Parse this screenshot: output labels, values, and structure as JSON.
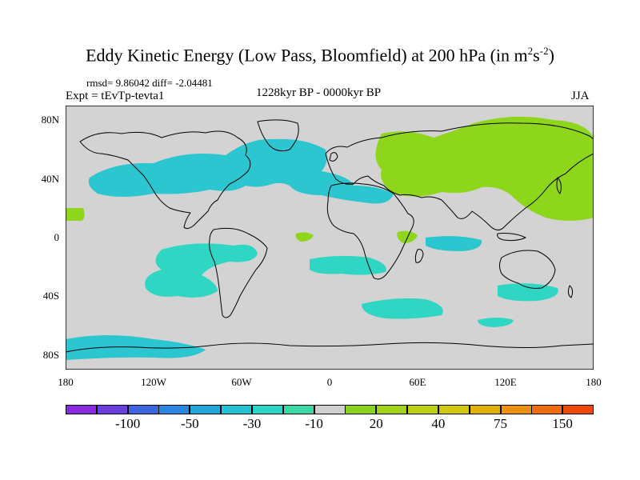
{
  "header": {
    "title_main": "Eddy Kinetic Energy (Low Pass, Bloomfield) at 200 hPa (in m",
    "title_sup1": "2",
    "title_mid": "s",
    "title_sup2": "-2",
    "title_end": ")",
    "stats": "rmsd= 9.86042 diff= -2.04481",
    "experiment": "Expt = tEvTp-tevta1",
    "period": "1228kyr BP - 0000kyr BP",
    "season": "JJA"
  },
  "map": {
    "lat_labels": [
      {
        "value": 80,
        "label": "80N"
      },
      {
        "value": 40,
        "label": "40N"
      },
      {
        "value": 0,
        "label": "0"
      },
      {
        "value": -40,
        "label": "40S"
      },
      {
        "value": -80,
        "label": "80S"
      }
    ],
    "lon_labels": [
      {
        "value": -180,
        "label": "180"
      },
      {
        "value": -120,
        "label": "120W"
      },
      {
        "value": -60,
        "label": "60W"
      },
      {
        "value": 0,
        "label": "0"
      },
      {
        "value": 60,
        "label": "60E"
      },
      {
        "value": 120,
        "label": "120E"
      },
      {
        "value": 180,
        "label": "180"
      }
    ],
    "lat_range": [
      -90,
      90
    ],
    "lon_range": [
      -180,
      180
    ],
    "background_color": "#d3d3d3",
    "negative_fill": "#2fd6c4",
    "negative_strong_fill": "#2bc6cf",
    "positive_fill": "#8ed61c"
  },
  "colorbar": {
    "colors": [
      "#8a2be2",
      "#6a3fe0",
      "#3b66e0",
      "#2a86de",
      "#21a6d8",
      "#22c4d4",
      "#2bd6c8",
      "#3ad9a8",
      "#cfcfcf",
      "#8bd61a",
      "#a3d315",
      "#bcd10f",
      "#d4c80c",
      "#e3b20a",
      "#eb920a",
      "#ef6e0a",
      "#ef4a0a"
    ],
    "labels": [
      {
        "after_box": 2,
        "label": "-100"
      },
      {
        "after_box": 4,
        "label": "-50"
      },
      {
        "after_box": 6,
        "label": "-30"
      },
      {
        "after_box": 8,
        "label": "-10"
      },
      {
        "after_box": 10,
        "label": "20"
      },
      {
        "after_box": 12,
        "label": "40"
      },
      {
        "after_box": 14,
        "label": "75"
      },
      {
        "after_box": 16,
        "label": "150"
      }
    ]
  }
}
